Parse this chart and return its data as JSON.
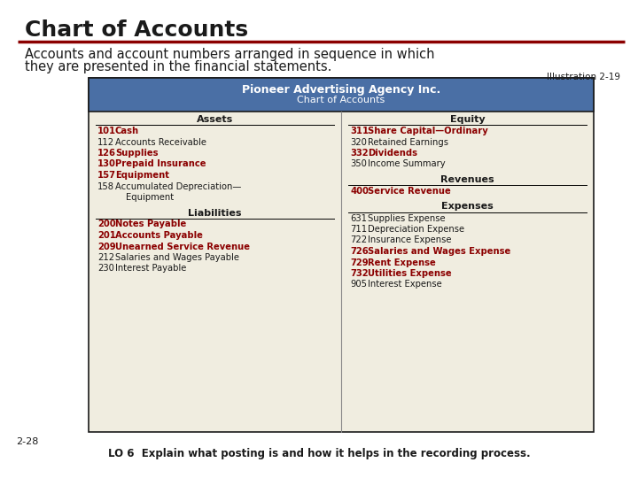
{
  "title": "Chart of Accounts",
  "subtitle_line1": "Accounts and account numbers arranged in sequence in which",
  "subtitle_line2": "they are presented in the financial statements.",
  "illustration": "Illustration 2-19",
  "company_name": "Pioneer Advertising Agency Inc.",
  "table_subtitle": "Chart of Accounts",
  "footer": "LO 6  Explain what posting is and how it helps in the recording process.",
  "slide_number": "2-28",
  "title_color": "#1a1a1a",
  "header_bg": "#4A6FA5",
  "header_text_color": "#ffffff",
  "table_bg": "#f0ede0",
  "border_color": "#1a1a1a",
  "red_color": "#8B0000",
  "black_color": "#1a1a1a",
  "section_header_color": "#1a1a1a",
  "divider_color": "#8B0000",
  "assets": [
    {
      "num": "101",
      "name": "Cash",
      "bold": true
    },
    {
      "num": "112",
      "name": "Accounts Receivable",
      "bold": false
    },
    {
      "num": "126",
      "name": "Supplies",
      "bold": true
    },
    {
      "num": "130",
      "name": "Prepaid Insurance",
      "bold": true
    },
    {
      "num": "157",
      "name": "Equipment",
      "bold": true
    },
    {
      "num": "158",
      "name": "Accumulated Depreciation—",
      "bold": false
    },
    {
      "num": "",
      "name": "Equipment",
      "bold": false,
      "indent": true
    }
  ],
  "liabilities": [
    {
      "num": "200",
      "name": "Notes Payable",
      "bold": true
    },
    {
      "num": "201",
      "name": "Accounts Payable",
      "bold": true
    },
    {
      "num": "209",
      "name": "Unearned Service Revenue",
      "bold": true
    },
    {
      "num": "212",
      "name": "Salaries and Wages Payable",
      "bold": false
    },
    {
      "num": "230",
      "name": "Interest Payable",
      "bold": false
    }
  ],
  "equity": [
    {
      "num": "311",
      "name": "Share Capital—Ordinary",
      "bold": true
    },
    {
      "num": "320",
      "name": "Retained Earnings",
      "bold": false
    },
    {
      "num": "332",
      "name": "Dividends",
      "bold": true
    },
    {
      "num": "350",
      "name": "Income Summary",
      "bold": false
    }
  ],
  "revenues": [
    {
      "num": "400",
      "name": "Service Revenue",
      "bold": true
    }
  ],
  "expenses": [
    {
      "num": "631",
      "name": "Supplies Expense",
      "bold": false
    },
    {
      "num": "711",
      "name": "Depreciation Expense",
      "bold": false
    },
    {
      "num": "722",
      "name": "Insurance Expense",
      "bold": false
    },
    {
      "num": "726",
      "name": "Salaries and Wages Expense",
      "bold": true
    },
    {
      "num": "729",
      "name": "Rent Expense",
      "bold": true
    },
    {
      "num": "732",
      "name": "Utilities Expense",
      "bold": true
    },
    {
      "num": "905",
      "name": "Interest Expense",
      "bold": false
    }
  ]
}
